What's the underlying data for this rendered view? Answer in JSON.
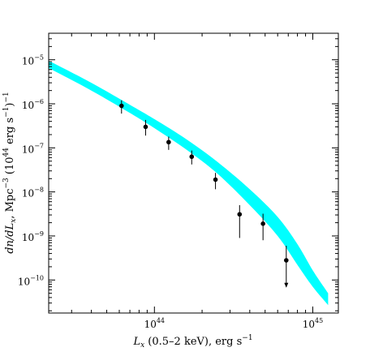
{
  "chart_data": {
    "type": "scatter",
    "title": "",
    "xlabel": {
      "sym": "L",
      "sub": "x",
      "rest": " (0.5–2 keV), erg s",
      "sup": "−1"
    },
    "ylabel": {
      "pre": "dn/dL",
      "sub": "x",
      "mid": ", Mpc",
      "sup1": "−3",
      "mid2": " (10",
      "sup2": "44",
      "mid3": " erg s",
      "sup3": "−1",
      "post": ")",
      "sup4": "−1"
    },
    "x_scale": "log",
    "y_scale": "log",
    "xlim": [
      2.15e+43,
      1.45e+45
    ],
    "ylim": [
      1.78e-11,
      4e-05
    ],
    "x_ticks": [
      {
        "value": 1e+44,
        "base": "10",
        "exp": "44"
      },
      {
        "value": 1e+45,
        "base": "10",
        "exp": "45"
      }
    ],
    "y_ticks": [
      {
        "value": 1e-05,
        "base": "10",
        "exp": "−5"
      },
      {
        "value": 1e-06,
        "base": "10",
        "exp": "−6"
      },
      {
        "value": 1e-07,
        "base": "10",
        "exp": "−7"
      },
      {
        "value": 1e-08,
        "base": "10",
        "exp": "−8"
      },
      {
        "value": 1e-09,
        "base": "10",
        "exp": "−9"
      },
      {
        "value": 1e-10,
        "base": "10",
        "exp": "−10"
      }
    ],
    "grid": false,
    "band": {
      "color": "#00ffff",
      "x": [
        2.15e+43,
        4e+43,
        7e+43,
        1e+44,
        1.6e+44,
        2.5e+44,
        4e+44,
        6e+44,
        8e+44,
        1e+45,
        1.25e+45
      ],
      "upper": [
        9.5e-06,
        3e-06,
        9.5e-07,
        4.5e-07,
        1.55e-07,
        4.8e-08,
        1.15e-08,
        2.7e-09,
        6.5e-10,
        1.65e-10,
        5e-11
      ],
      "lower": [
        6.5e-06,
        2e-06,
        6.2e-07,
        2.8e-07,
        9e-08,
        2.6e-08,
        5e-09,
        1e-09,
        2.2e-10,
        7e-11,
        2.7e-11
      ]
    },
    "points": [
      {
        "x": 6.2e+43,
        "y": 9e-07,
        "err_lo": 6e-07,
        "err_hi": 1.2e-06
      },
      {
        "x": 8.8e+43,
        "y": 3e-07,
        "err_lo": 1.9e-07,
        "err_hi": 4.3e-07
      },
      {
        "x": 1.23e+44,
        "y": 1.35e-07,
        "err_lo": 9e-08,
        "err_hi": 1.8e-07
      },
      {
        "x": 1.72e+44,
        "y": 6.3e-08,
        "err_lo": 4.2e-08,
        "err_hi": 8.7e-08
      },
      {
        "x": 2.43e+44,
        "y": 1.9e-08,
        "err_lo": 1.15e-08,
        "err_hi": 2.7e-08
      },
      {
        "x": 3.45e+44,
        "y": 3.1e-09,
        "err_lo": 9e-10,
        "err_hi": 5e-09
      },
      {
        "x": 4.85e+44,
        "y": 1.9e-09,
        "err_lo": 8e-10,
        "err_hi": 3.2e-09
      },
      {
        "x": 6.8e+44,
        "y": 2.8e-10,
        "err_lo": 7e-11,
        "err_hi": 6e-10,
        "upper_limit_arrow": true
      }
    ]
  }
}
